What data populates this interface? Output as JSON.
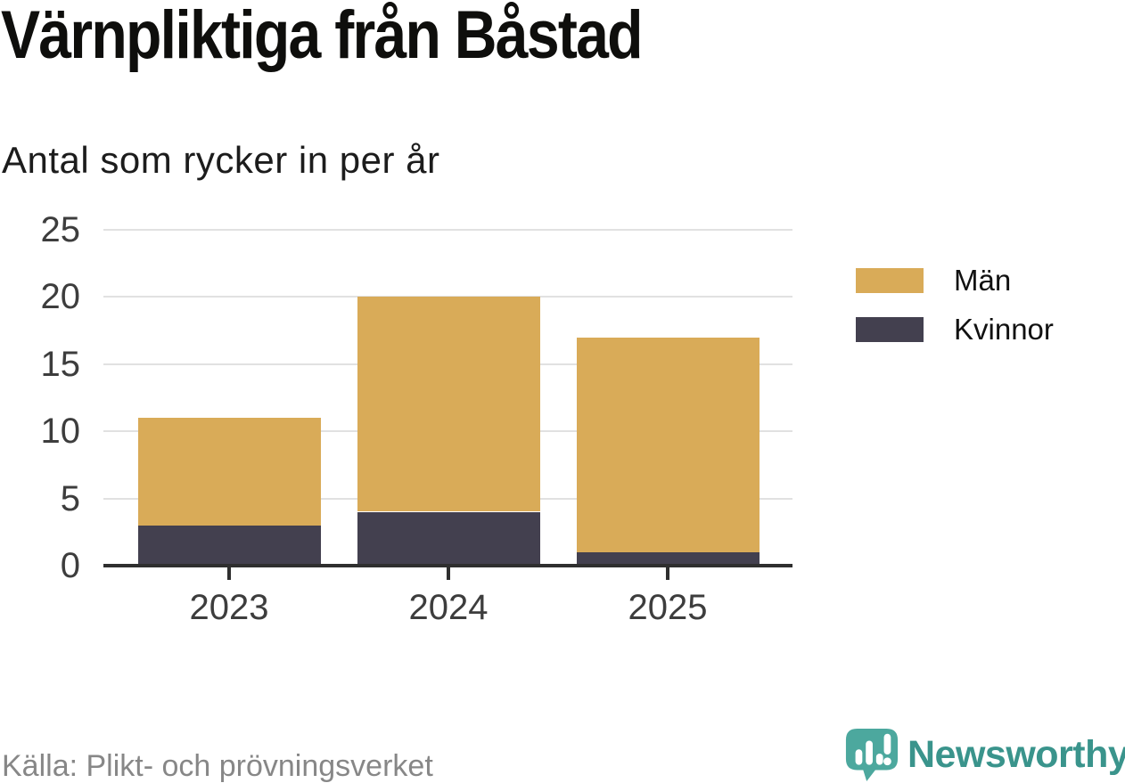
{
  "header": {
    "title": "Värnpliktiga från Båstad",
    "subtitle": "Antal som rycker in per år"
  },
  "chart_data": {
    "type": "bar",
    "stacked": true,
    "title": "Värnpliktiga från Båstad",
    "subtitle": "Antal som rycker in per år",
    "categories": [
      "2023",
      "2024",
      "2025"
    ],
    "series": [
      {
        "name": "Män",
        "color": "#d9ab58",
        "values": [
          8,
          16,
          16
        ]
      },
      {
        "name": "Kvinnor",
        "color": "#43404f",
        "values": [
          3,
          4,
          1
        ]
      }
    ],
    "totals": [
      11,
      20,
      17
    ],
    "xlabel": "",
    "ylabel": "Antal som rycker in per år",
    "ylim": [
      0,
      25
    ],
    "yticks": [
      0,
      5,
      10,
      15,
      20,
      25
    ],
    "grid": true,
    "legend_position": "right"
  },
  "footer": {
    "source": "Källa: Plikt- och prövningsverket",
    "brand": "Newsworthy"
  },
  "colors": {
    "bar_men": "#d9ab58",
    "bar_women": "#43404f",
    "axis": "#2f2f2f",
    "gridline": "#e1e1e1",
    "brand_teal": "#3a948c",
    "icon_teal": "#4ca89e",
    "source_gray": "#878787"
  }
}
